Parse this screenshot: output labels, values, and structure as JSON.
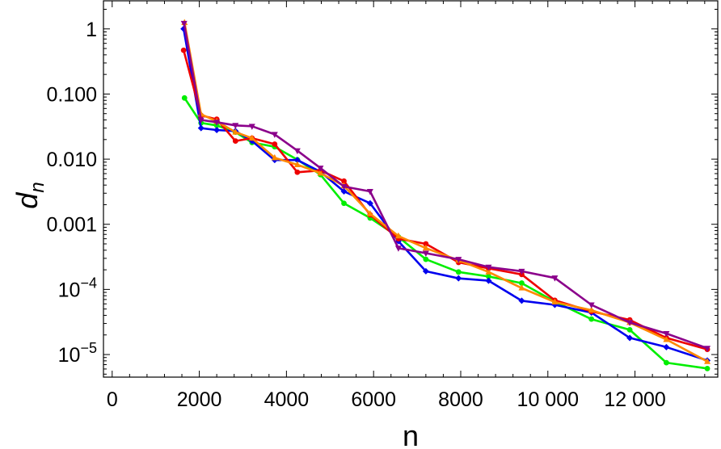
{
  "chart_data": {
    "type": "line",
    "title": "",
    "xlabel": "n",
    "ylabel": "d",
    "ylabel_subscript": "n",
    "xlim": [
      -200,
      13900
    ],
    "ylim": [
      4.5e-06,
      2.7
    ],
    "yscale": "log",
    "grid": false,
    "legend": "none",
    "x_ticks": [
      0,
      2000,
      4000,
      6000,
      8000,
      10000,
      12000
    ],
    "x_tick_labels": [
      "0",
      "2000",
      "4000",
      "6000",
      "8000",
      "10 000",
      "12 000"
    ],
    "y_ticks": [
      {
        "value": 1,
        "label": "1"
      },
      {
        "value": 0.1,
        "label": "0.100"
      },
      {
        "value": 0.01,
        "label": "0.010"
      },
      {
        "value": 0.001,
        "label": "0.001"
      },
      {
        "value": 0.0001,
        "mantissa": "10",
        "exponent": "−4"
      },
      {
        "value": 1e-05,
        "mantissa": "10",
        "exponent": "−5"
      }
    ],
    "series": [
      {
        "color": "#00ee00",
        "marker": "circle",
        "points": [
          [
            1660,
            0.087
          ],
          [
            2040,
            0.036
          ],
          [
            2400,
            0.033
          ],
          [
            2830,
            0.026
          ],
          [
            3210,
            0.018
          ],
          [
            3730,
            0.0155
          ],
          [
            4250,
            0.0098
          ],
          [
            4780,
            0.0058
          ],
          [
            5320,
            0.0021
          ],
          [
            5920,
            0.00125
          ],
          [
            6570,
            0.00064
          ],
          [
            7200,
            0.00029
          ],
          [
            7950,
            0.000185
          ],
          [
            8640,
            0.000158
          ],
          [
            9400,
            0.000125
          ],
          [
            10160,
            6.5e-05
          ],
          [
            11000,
            3.5e-05
          ],
          [
            11880,
            2.4e-05
          ],
          [
            12720,
            7.5e-06
          ],
          [
            13660,
            6.1e-06
          ]
        ]
      },
      {
        "color": "#0000ee",
        "marker": "diamond",
        "points": [
          [
            1640,
            1.0
          ],
          [
            2040,
            0.03
          ],
          [
            2400,
            0.028
          ],
          [
            2830,
            0.027
          ],
          [
            3210,
            0.019
          ],
          [
            3730,
            0.0097
          ],
          [
            4250,
            0.0097
          ],
          [
            4780,
            0.0064
          ],
          [
            5320,
            0.0032
          ],
          [
            5920,
            0.0021
          ],
          [
            6570,
            0.00055
          ],
          [
            7200,
            0.00019
          ],
          [
            7950,
            0.000148
          ],
          [
            8640,
            0.000136
          ],
          [
            9400,
            6.7e-05
          ],
          [
            10160,
            5.8e-05
          ],
          [
            11000,
            4.4e-05
          ],
          [
            11880,
            1.8e-05
          ],
          [
            12720,
            1.3e-05
          ],
          [
            13660,
            8.1e-06
          ]
        ]
      },
      {
        "color": "#ee0000",
        "marker": "circle",
        "points": [
          [
            1640,
            0.47
          ],
          [
            2040,
            0.047
          ],
          [
            2400,
            0.041
          ],
          [
            2830,
            0.019
          ],
          [
            3210,
            0.021
          ],
          [
            3730,
            0.017
          ],
          [
            4250,
            0.0063
          ],
          [
            4780,
            0.0067
          ],
          [
            5320,
            0.0046
          ],
          [
            5920,
            0.0014
          ],
          [
            6570,
            0.0006
          ],
          [
            7200,
            0.0005
          ],
          [
            7950,
            0.00026
          ],
          [
            8640,
            0.00021
          ],
          [
            9400,
            0.00017
          ],
          [
            10160,
            6.8e-05
          ],
          [
            11000,
            4.6e-05
          ],
          [
            11880,
            3.4e-05
          ],
          [
            12720,
            1.8e-05
          ],
          [
            13660,
            1.2e-05
          ]
        ]
      },
      {
        "color": "#ff8800",
        "marker": "triangle",
        "points": [
          [
            1660,
            1.25
          ],
          [
            2040,
            0.049
          ],
          [
            2400,
            0.038
          ],
          [
            2830,
            0.026
          ],
          [
            3210,
            0.021
          ],
          [
            3730,
            0.0105
          ],
          [
            4250,
            0.0082
          ],
          [
            4780,
            0.0061
          ],
          [
            5320,
            0.0039
          ],
          [
            5920,
            0.00145
          ],
          [
            6570,
            0.00066
          ],
          [
            7200,
            0.00043
          ],
          [
            7950,
            0.00028
          ],
          [
            8640,
            0.000185
          ],
          [
            9400,
            0.000105
          ],
          [
            10160,
            6.4e-05
          ],
          [
            11000,
            4.8e-05
          ],
          [
            11880,
            3.1e-05
          ],
          [
            12720,
            1.7e-05
          ],
          [
            13660,
            7.8e-06
          ]
        ]
      },
      {
        "color": "#8b008b",
        "marker": "down-triangle",
        "points": [
          [
            1650,
            1.22
          ],
          [
            2040,
            0.04
          ],
          [
            2400,
            0.037
          ],
          [
            2830,
            0.033
          ],
          [
            3210,
            0.032
          ],
          [
            3730,
            0.024
          ],
          [
            4250,
            0.0135
          ],
          [
            4780,
            0.0073
          ],
          [
            5320,
            0.0038
          ],
          [
            5920,
            0.0032
          ],
          [
            6570,
            0.00043
          ],
          [
            7200,
            0.00036
          ],
          [
            7950,
            0.00029
          ],
          [
            8640,
            0.00022
          ],
          [
            9400,
            0.00019
          ],
          [
            10160,
            0.00015
          ],
          [
            11000,
            5.8e-05
          ],
          [
            11880,
            3.1e-05
          ],
          [
            12720,
            2.1e-05
          ],
          [
            13660,
            1.25e-05
          ]
        ]
      }
    ]
  }
}
